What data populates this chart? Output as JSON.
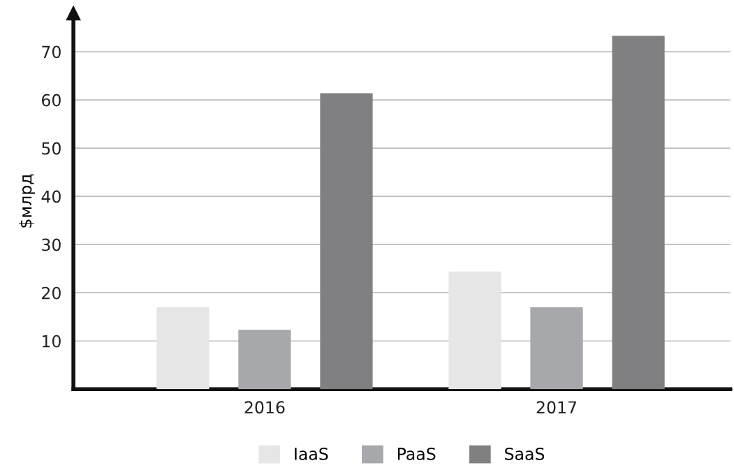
{
  "chart_data": {
    "type": "bar",
    "ylabel": "$млрд",
    "categories": [
      "2016",
      "2017"
    ],
    "series": [
      {
        "name": "IaaS",
        "color": "#e6e6e6",
        "values": [
          17,
          24.4
        ]
      },
      {
        "name": "PaaS",
        "color": "#a7a8ab",
        "values": [
          12.3,
          17
        ]
      },
      {
        "name": "SaaS",
        "color": "#808082",
        "values": [
          61.4,
          73.3
        ]
      }
    ],
    "ylim": [
      0,
      78
    ],
    "yticks": [
      10,
      20,
      30,
      40,
      50,
      60,
      70
    ],
    "grid": "y",
    "legend": "bottom"
  }
}
